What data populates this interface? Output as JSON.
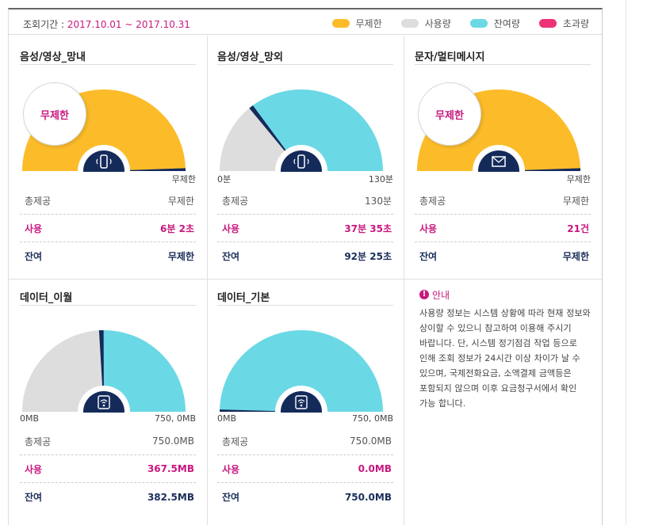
{
  "header": {
    "period_label": "조회기간 : ",
    "period_value": "2017.10.01 ~ 2017.10.31",
    "legend": [
      {
        "label": "무제한",
        "color": "#fcbc2a"
      },
      {
        "label": "사용량",
        "color": "#dddddd"
      },
      {
        "label": "잔여량",
        "color": "#6bd8e5"
      },
      {
        "label": "초과량",
        "color": "#ee3178"
      }
    ]
  },
  "cards": [
    {
      "title": "음성/영상_망내",
      "gauge_type": "unlimited",
      "bubble": "무제한",
      "min_label": "",
      "max_label": "무제한",
      "icon": "phone-icon",
      "used_fraction": 0,
      "total_label": "총제공",
      "total_value": "무제한",
      "used_label": "사용",
      "used_value": "6분 2초",
      "left_label": "잔여",
      "left_value": "무제한"
    },
    {
      "title": "음성/영상_망외",
      "gauge_type": "quota",
      "bubble": "",
      "min_label": "0분",
      "max_label": "130분",
      "icon": "phone-icon",
      "used_fraction": 0.289,
      "total_label": "총제공",
      "total_value": "130분",
      "used_label": "사용",
      "used_value": "37분 35초",
      "left_label": "잔여",
      "left_value": "92분 25초"
    },
    {
      "title": "문자/멀티메시지",
      "gauge_type": "unlimited",
      "bubble": "무제한",
      "min_label": "",
      "max_label": "무제한",
      "icon": "mail-icon",
      "used_fraction": 0,
      "total_label": "총제공",
      "total_value": "무제한",
      "used_label": "사용",
      "used_value": "21건",
      "left_label": "잔여",
      "left_value": "무제한"
    },
    {
      "title": "데이터_이월",
      "gauge_type": "quota",
      "bubble": "",
      "min_label": "0MB",
      "max_label": "750, 0MB",
      "icon": "wifi-icon",
      "used_fraction": 0.49,
      "total_label": "총제공",
      "total_value": "750.0MB",
      "used_label": "사용",
      "used_value": "367.5MB",
      "left_label": "잔여",
      "left_value": "382.5MB"
    },
    {
      "title": "데이터_기본",
      "gauge_type": "quota",
      "bubble": "",
      "min_label": "0MB",
      "max_label": "750, 0MB",
      "icon": "wifi-icon",
      "used_fraction": 0,
      "total_label": "총제공",
      "total_value": "750.0MB",
      "used_label": "사용",
      "used_value": "0.0MB",
      "left_label": "잔여",
      "left_value": "750.0MB"
    }
  ],
  "notice": {
    "title": "안내",
    "body": "사용량 정보는 시스템 상황에 따라 현재 정보와 상이할 수 있으니 참고하여 이용해 주시기 바랍니다. 단, 시스템 정기점검 작업 등으로 인해 조회 정보가 24시간 이상 차이가 날 수 있으며, 국제전화요금, 소액결제 금액등은 포함되지 않으며 이후 요금청구서에서 확인 가능 합니다."
  },
  "colors": {
    "unlimited": "#fcbc2a",
    "used": "#dddddd",
    "remaining": "#6bd8e5",
    "needle": "#142b5a",
    "hub": "#142b5a"
  }
}
